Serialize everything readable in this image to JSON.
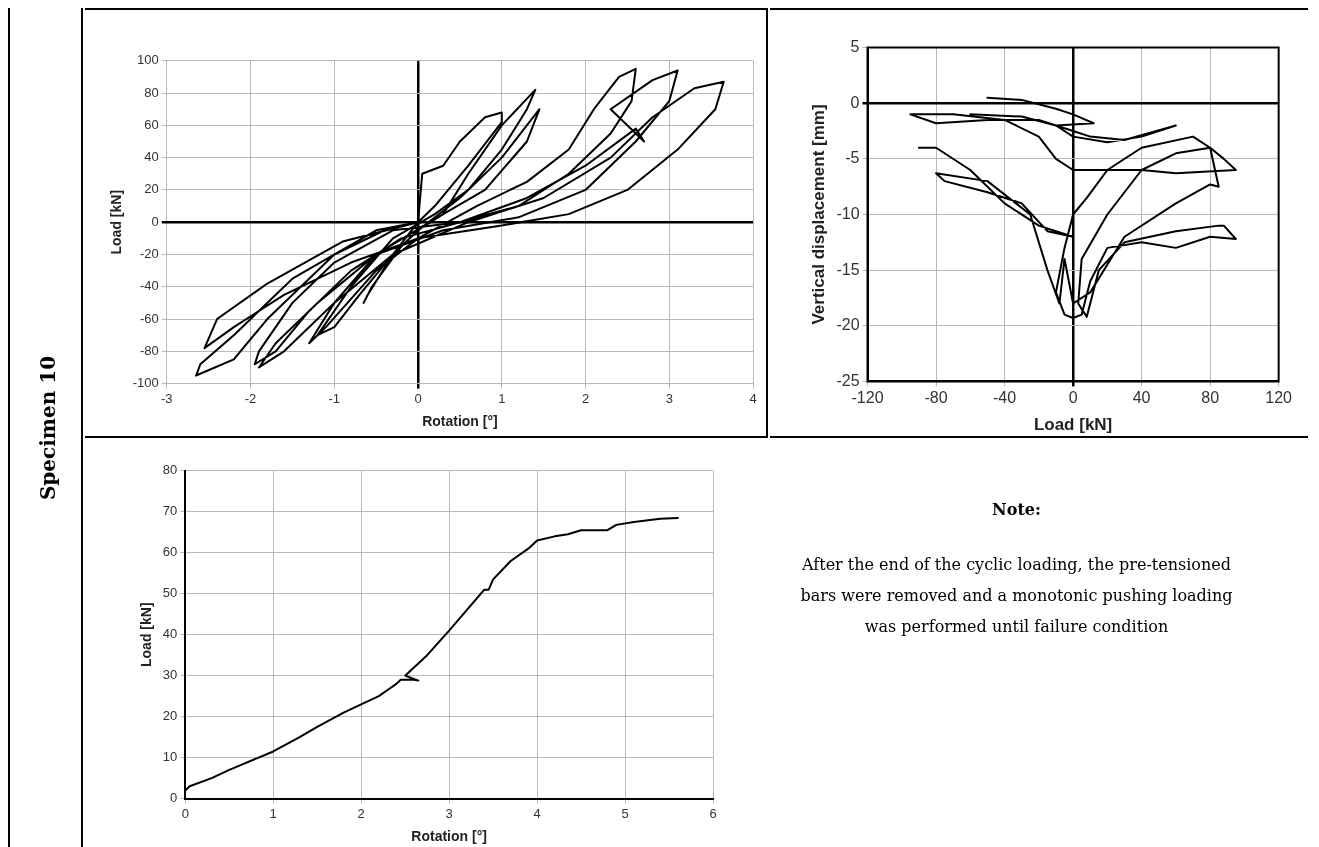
{
  "chart_data": [
    {
      "type": "other",
      "title": "Specimen 10"
    },
    {
      "type": "line",
      "xlabel": "Rotation [°]",
      "ylabel": "Load [kN]",
      "xlim": [
        -3,
        4
      ],
      "ylim": [
        -100,
        100
      ],
      "xticks": [
        -3,
        -2,
        -1,
        0,
        1,
        2,
        3,
        4
      ],
      "yticks": [
        -100,
        -80,
        -60,
        -40,
        -20,
        0,
        20,
        40,
        60,
        80,
        100
      ],
      "grid": true,
      "marker": "none",
      "series": [
        {
          "color": "#000000",
          "x": [
            0,
            0.05,
            0.3,
            0.5,
            0.8,
            1.0,
            1.0,
            0.6,
            0.2,
            0,
            -0.3,
            -0.6,
            -0.65,
            -0.55,
            -0.2,
            0,
            0.3,
            0.6,
            1.0,
            1.4,
            1.3,
            1.0,
            0.6,
            0.2,
            -0.3,
            -0.8,
            -1.2,
            -1.0,
            -0.7,
            -0.3,
            0,
            0.5,
            1.0,
            1.45,
            1.3,
            0.8,
            0.3,
            -0.5,
            -1.0,
            -1.3,
            -1.1,
            -0.5,
            0,
            0.7,
            1.3,
            1.8,
            2.1,
            2.4,
            2.6,
            2.55,
            2.3,
            1.8,
            1.2,
            0.5,
            -0.3,
            -1.0,
            -1.5,
            -1.9,
            -1.95,
            -1.7,
            -1.3,
            -0.8,
            -0.2,
            0.5,
            1.3,
            2.0,
            2.6,
            2.7,
            2.3,
            2.8,
            3.1,
            3.0,
            2.6,
            2.0,
            1.2,
            0.3,
            -0.5,
            -1.2,
            -1.7,
            -1.9,
            -1.6,
            -1.0,
            -0.3,
            0.6,
            1.5,
            2.3,
            2.8,
            3.3,
            3.65,
            3.55,
            3.1,
            2.5,
            1.8,
            1.0,
            0,
            -0.8,
            -1.6,
            -2.2,
            -2.55,
            -2.4,
            -1.8,
            -0.9,
            0,
            -0.5,
            -1.5,
            -2.2,
            -2.6,
            -2.65,
            -2.2,
            -1.8,
            -1.0,
            -0.4
          ],
          "values": [
            0,
            30,
            35,
            50,
            65,
            68,
            62,
            35,
            10,
            0,
            -20,
            -45,
            -50,
            -40,
            -15,
            -5,
            5,
            30,
            60,
            82,
            70,
            45,
            20,
            5,
            -10,
            -40,
            -70,
            -65,
            -45,
            -20,
            -5,
            15,
            40,
            70,
            50,
            20,
            5,
            -20,
            -50,
            -75,
            -65,
            -30,
            -10,
            10,
            25,
            45,
            70,
            90,
            95,
            75,
            55,
            30,
            10,
            0,
            -5,
            -25,
            -50,
            -80,
            -88,
            -80,
            -55,
            -30,
            -10,
            0,
            15,
            35,
            58,
            50,
            70,
            88,
            94,
            75,
            50,
            20,
            3,
            -5,
            -20,
            -50,
            -75,
            -90,
            -80,
            -50,
            -20,
            0,
            15,
            40,
            65,
            83,
            87,
            70,
            45,
            20,
            5,
            -2,
            -10,
            -25,
            -45,
            -65,
            -78,
            -60,
            -38,
            -12,
            0,
            -5,
            -35,
            -70,
            -88,
            -95,
            -85,
            -60,
            -20,
            -5
          ]
        }
      ]
    },
    {
      "type": "line",
      "xlabel": "Load [kN]",
      "ylabel": "Vertical displacement [mm]",
      "xlim": [
        -120,
        120
      ],
      "ylim": [
        -25,
        5
      ],
      "xticks": [
        -120,
        -80,
        -40,
        0,
        40,
        80,
        120
      ],
      "yticks": [
        -25,
        -20,
        -15,
        -10,
        -5,
        0,
        5
      ],
      "grid": true,
      "marker": "none",
      "series": [
        {
          "color": "#000000",
          "x": [
            -50,
            -30,
            -10,
            0,
            12,
            -10,
            -30,
            -60,
            -30,
            -10,
            0,
            20,
            40,
            60,
            30,
            10,
            0,
            -20,
            -50,
            -80,
            -95,
            -70,
            -40,
            -20,
            -10,
            0,
            20,
            40,
            60,
            95,
            88,
            80,
            70,
            40,
            20,
            8,
            0,
            -5,
            -10,
            -5,
            0,
            5,
            10,
            20,
            40,
            60,
            80,
            95,
            88,
            85,
            60,
            30,
            15,
            8,
            3,
            5,
            20,
            40,
            60,
            80,
            85,
            80,
            60,
            30,
            10,
            0,
            -5,
            -8,
            -15,
            -25,
            -50,
            -80,
            -75,
            -50,
            -30,
            -15,
            0,
            -20,
            -40,
            -60,
            -80,
            -90
          ],
          "values": [
            0.5,
            0.3,
            -0.5,
            -1,
            -1.8,
            -2,
            -1.2,
            -1,
            -1.2,
            -2,
            -3,
            -3.5,
            -3,
            -2,
            -3.3,
            -3,
            -2.5,
            -1.5,
            -1.5,
            -1.8,
            -1,
            -1,
            -1.5,
            -3,
            -5,
            -6,
            -6,
            -6,
            -6.3,
            -6,
            -5,
            -4,
            -3,
            -4,
            -6,
            -8.5,
            -10,
            -13,
            -17,
            -19,
            -19.3,
            -19,
            -16,
            -13,
            -12.5,
            -13,
            -12,
            -12.2,
            -11,
            -11,
            -11.5,
            -12.5,
            -15,
            -19.2,
            -18,
            -14,
            -10,
            -6,
            -4.5,
            -4,
            -7.5,
            -7.3,
            -9,
            -12,
            -17,
            -18,
            -14,
            -18,
            -15,
            -10,
            -7,
            -6.3,
            -7,
            -8,
            -9,
            -11.5,
            -12,
            -11,
            -9,
            -6,
            -4,
            -4
          ]
        }
      ]
    },
    {
      "type": "line",
      "xlabel": "Rotation [°]",
      "ylabel": "Load [kN]",
      "xlim": [
        0,
        6
      ],
      "ylim": [
        0,
        80
      ],
      "xticks": [
        0,
        1,
        2,
        3,
        4,
        5,
        6
      ],
      "yticks": [
        0,
        10,
        20,
        30,
        40,
        50,
        60,
        70,
        80
      ],
      "grid": true,
      "marker": "none",
      "series": [
        {
          "color": "#000000",
          "x": [
            0,
            0.05,
            0.3,
            0.5,
            1,
            1.3,
            1.5,
            1.8,
            2,
            2.2,
            2.3,
            2.4,
            2.45,
            2.6,
            2.65,
            2.5,
            2.6,
            2.75,
            3,
            3.2,
            3.4,
            3.45,
            3.5,
            3.7,
            3.9,
            4,
            4.2,
            4.35,
            4.5,
            4.8,
            4.9,
            5.1,
            5.4,
            5.6
          ],
          "values": [
            2,
            3,
            5,
            7,
            11.5,
            15,
            17.5,
            21,
            23,
            25,
            26.5,
            28,
            29,
            29,
            28.8,
            30,
            32,
            35,
            41,
            46,
            51,
            51,
            53.5,
            58,
            61,
            63,
            64,
            64.5,
            65.5,
            65.5,
            66.8,
            67.5,
            68.3,
            68.5
          ]
        }
      ]
    },
    {
      "type": "other",
      "title": "Note:",
      "annotations": [
        "After the end of the cyclic loading, the pre-tensioned bars were removed and a monotonic pushing loading was performed until failure condition"
      ]
    }
  ]
}
